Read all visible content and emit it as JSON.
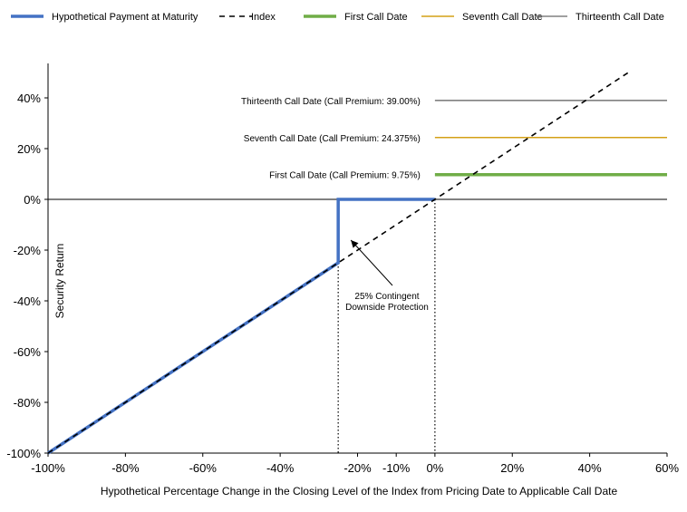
{
  "chart_data": {
    "type": "line",
    "xlabel": "Hypothetical Percentage Change in the Closing Level of the Index from Pricing Date to Applicable Call Date",
    "ylabel": "Security Return",
    "xlim": [
      -100,
      60
    ],
    "ylim": [
      -100,
      50
    ],
    "x_ticks": [
      -100,
      -80,
      -60,
      -40,
      -20,
      -10,
      0,
      20,
      40,
      60
    ],
    "x_tick_labels": [
      "-100%",
      "-80%",
      "-60%",
      "-40%",
      "-20%",
      "-10%",
      "0%",
      "20%",
      "40%",
      "60%"
    ],
    "y_ticks": [
      40,
      20,
      0,
      -20,
      -40,
      -60,
      -80,
      -100
    ],
    "y_tick_labels": [
      "40%",
      "20%",
      "0%",
      "-20%",
      "-40%",
      "-60%",
      "-80%",
      "-100%"
    ],
    "legend_position": "top",
    "series": [
      {
        "name": "Hypothetical Payment at Maturity",
        "color": "#4472C4",
        "x": [
          -100,
          -25,
          -25,
          0
        ],
        "y": [
          -100,
          -25,
          0,
          0
        ]
      },
      {
        "name": "Index",
        "color": "#000000",
        "style": "dashed",
        "x": [
          -100,
          50
        ],
        "y": [
          -100,
          50
        ]
      },
      {
        "name": "First Call Date",
        "color": "#70AD47",
        "x": [
          0,
          60
        ],
        "y": [
          9.75,
          9.75
        ]
      },
      {
        "name": "Seventh Call Date",
        "color": "#D4A017",
        "x": [
          0,
          60
        ],
        "y": [
          24.375,
          24.375
        ]
      },
      {
        "name": "Thirteenth Call Date",
        "color": "#808080",
        "x": [
          0,
          60
        ],
        "y": [
          39,
          39
        ]
      }
    ],
    "series_labels": [
      {
        "text": "Thirteenth Call Date (Call Premium: 39.00%)",
        "y": 39
      },
      {
        "text": "Seventh Call Date (Call Premium: 24.375%)",
        "y": 24.375
      },
      {
        "text": "First Call Date (Call Premium: 9.75%)",
        "y": 9.75
      }
    ],
    "annotation": {
      "lines": [
        "25% Contingent",
        "Downside Protection"
      ],
      "points_to": [
        -25,
        -15
      ]
    },
    "vertical_markers": [
      -25,
      0
    ]
  }
}
